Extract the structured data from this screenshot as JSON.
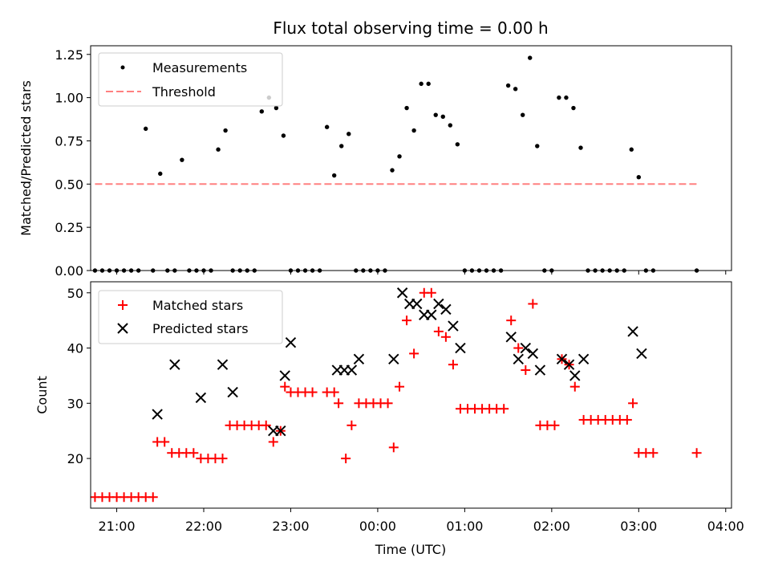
{
  "chart_data": [
    {
      "type": "scatter",
      "title": "Flux total observing time = 0.00 h",
      "xlabel": "",
      "ylabel": "Matched/Predicted stars",
      "ylim": [
        0,
        1.3
      ],
      "yticks": [
        "0.00",
        "0.25",
        "0.50",
        "0.75",
        "1.00",
        "1.25"
      ],
      "ytick_values": [
        0,
        0.25,
        0.5,
        0.75,
        1.0,
        1.25
      ],
      "xlim": [
        "20:42",
        "04:04"
      ],
      "xtick_values": [
        "21:00",
        "22:00",
        "23:00",
        "00:00",
        "01:00",
        "02:00",
        "03:00",
        "04:00"
      ],
      "legend_position": "upper-left",
      "grid": false,
      "series": [
        {
          "name": "Measurements",
          "marker": "dot",
          "color": "#000000",
          "points": [
            [
              "20:45",
              0
            ],
            [
              "20:50",
              0
            ],
            [
              "20:55",
              0
            ],
            [
              "21:00",
              0
            ],
            [
              "21:05",
              0
            ],
            [
              "21:10",
              0
            ],
            [
              "21:15",
              0
            ],
            [
              "21:20",
              0.82
            ],
            [
              "21:25",
              0
            ],
            [
              "21:30",
              0.56
            ],
            [
              "21:35",
              0
            ],
            [
              "21:40",
              0
            ],
            [
              "21:45",
              0.64
            ],
            [
              "21:50",
              0
            ],
            [
              "21:55",
              0
            ],
            [
              "22:00",
              0
            ],
            [
              "22:05",
              0
            ],
            [
              "22:10",
              0.7
            ],
            [
              "22:15",
              0.81
            ],
            [
              "22:20",
              0
            ],
            [
              "22:25",
              0
            ],
            [
              "22:30",
              0
            ],
            [
              "22:35",
              0
            ],
            [
              "22:40",
              0.92
            ],
            [
              "22:45",
              1.0
            ],
            [
              "22:50",
              0.94
            ],
            [
              "22:55",
              0.78
            ],
            [
              "23:00",
              0
            ],
            [
              "23:05",
              0
            ],
            [
              "23:10",
              0
            ],
            [
              "23:15",
              0
            ],
            [
              "23:20",
              0
            ],
            [
              "23:25",
              0.83
            ],
            [
              "23:30",
              0.55
            ],
            [
              "23:35",
              0.72
            ],
            [
              "23:40",
              0.79
            ],
            [
              "23:45",
              0
            ],
            [
              "23:50",
              0
            ],
            [
              "23:55",
              0
            ],
            [
              "00:00",
              0
            ],
            [
              "00:05",
              0
            ],
            [
              "00:10",
              0.58
            ],
            [
              "00:15",
              0.66
            ],
            [
              "00:20",
              0.94
            ],
            [
              "00:25",
              0.81
            ],
            [
              "00:30",
              1.08
            ],
            [
              "00:35",
              1.08
            ],
            [
              "00:40",
              0.9
            ],
            [
              "00:45",
              0.89
            ],
            [
              "00:50",
              0.84
            ],
            [
              "00:55",
              0.73
            ],
            [
              "01:00",
              0
            ],
            [
              "01:05",
              0
            ],
            [
              "01:10",
              0
            ],
            [
              "01:15",
              0
            ],
            [
              "01:20",
              0
            ],
            [
              "01:25",
              0
            ],
            [
              "01:30",
              1.07
            ],
            [
              "01:35",
              1.05
            ],
            [
              "01:40",
              0.9
            ],
            [
              "01:45",
              1.23
            ],
            [
              "01:50",
              0.72
            ],
            [
              "01:55",
              0
            ],
            [
              "02:00",
              0
            ],
            [
              "02:05",
              1.0
            ],
            [
              "02:10",
              1.0
            ],
            [
              "02:15",
              0.94
            ],
            [
              "02:20",
              0.71
            ],
            [
              "02:25",
              0
            ],
            [
              "02:30",
              0
            ],
            [
              "02:35",
              0
            ],
            [
              "02:40",
              0
            ],
            [
              "02:45",
              0
            ],
            [
              "02:50",
              0
            ],
            [
              "02:55",
              0.7
            ],
            [
              "03:00",
              0.54
            ],
            [
              "03:05",
              0
            ],
            [
              "03:10",
              0
            ],
            [
              "03:40",
              0
            ]
          ]
        },
        {
          "name": "Threshold",
          "marker": "dashed-line",
          "color": "#ff8080",
          "points": [
            [
              "20:45",
              0.5
            ],
            [
              "03:40",
              0.5
            ]
          ]
        }
      ]
    },
    {
      "type": "scatter",
      "title": "",
      "xlabel": "Time (UTC)",
      "ylabel": "Count",
      "ylim": [
        11,
        52
      ],
      "yticks": [
        "20",
        "30",
        "40",
        "50"
      ],
      "ytick_values": [
        20,
        30,
        40,
        50
      ],
      "xlim": [
        "20:42",
        "04:04"
      ],
      "xtick_values": [
        "21:00",
        "22:00",
        "23:00",
        "00:00",
        "01:00",
        "02:00",
        "03:00",
        "04:00"
      ],
      "xticks": [
        "21:00",
        "22:00",
        "23:00",
        "00:00",
        "01:00",
        "02:00",
        "03:00",
        "04:00"
      ],
      "legend_position": "upper-left",
      "grid": false,
      "series": [
        {
          "name": "Matched stars",
          "marker": "plus",
          "color": "#ff0000",
          "points": [
            [
              "20:45",
              13
            ],
            [
              "20:50",
              13
            ],
            [
              "20:55",
              13
            ],
            [
              "21:00",
              13
            ],
            [
              "21:05",
              13
            ],
            [
              "21:10",
              13
            ],
            [
              "21:15",
              13
            ],
            [
              "21:20",
              13
            ],
            [
              "21:25",
              13
            ],
            [
              "21:28",
              23
            ],
            [
              "21:33",
              23
            ],
            [
              "21:38",
              21
            ],
            [
              "21:43",
              21
            ],
            [
              "21:48",
              21
            ],
            [
              "21:53",
              21
            ],
            [
              "21:58",
              20
            ],
            [
              "22:03",
              20
            ],
            [
              "22:08",
              20
            ],
            [
              "22:13",
              20
            ],
            [
              "22:18",
              26
            ],
            [
              "22:23",
              26
            ],
            [
              "22:28",
              26
            ],
            [
              "22:33",
              26
            ],
            [
              "22:38",
              26
            ],
            [
              "22:43",
              26
            ],
            [
              "22:48",
              23
            ],
            [
              "22:53",
              25
            ],
            [
              "22:56",
              33
            ],
            [
              "23:00",
              32
            ],
            [
              "23:05",
              32
            ],
            [
              "23:10",
              32
            ],
            [
              "23:15",
              32
            ],
            [
              "23:25",
              32
            ],
            [
              "23:30",
              32
            ],
            [
              "23:33",
              30
            ],
            [
              "23:38",
              20
            ],
            [
              "23:42",
              26
            ],
            [
              "23:47",
              30
            ],
            [
              "23:52",
              30
            ],
            [
              "23:57",
              30
            ],
            [
              "00:02",
              30
            ],
            [
              "00:07",
              30
            ],
            [
              "00:11",
              22
            ],
            [
              "00:15",
              33
            ],
            [
              "00:20",
              45
            ],
            [
              "00:25",
              39
            ],
            [
              "00:32",
              50
            ],
            [
              "00:37",
              50
            ],
            [
              "00:42",
              43
            ],
            [
              "00:47",
              42
            ],
            [
              "00:52",
              37
            ],
            [
              "00:57",
              29
            ],
            [
              "01:02",
              29
            ],
            [
              "01:07",
              29
            ],
            [
              "01:12",
              29
            ],
            [
              "01:17",
              29
            ],
            [
              "01:22",
              29
            ],
            [
              "01:27",
              29
            ],
            [
              "01:32",
              45
            ],
            [
              "01:37",
              40
            ],
            [
              "01:42",
              36
            ],
            [
              "01:47",
              48
            ],
            [
              "01:52",
              26
            ],
            [
              "01:57",
              26
            ],
            [
              "02:02",
              26
            ],
            [
              "02:07",
              38
            ],
            [
              "02:12",
              37
            ],
            [
              "02:16",
              33
            ],
            [
              "02:22",
              27
            ],
            [
              "02:27",
              27
            ],
            [
              "02:32",
              27
            ],
            [
              "02:37",
              27
            ],
            [
              "02:42",
              27
            ],
            [
              "02:47",
              27
            ],
            [
              "02:52",
              27
            ],
            [
              "02:56",
              30
            ],
            [
              "03:00",
              21
            ],
            [
              "03:05",
              21
            ],
            [
              "03:10",
              21
            ],
            [
              "03:40",
              21
            ]
          ]
        },
        {
          "name": "Predicted stars",
          "marker": "x",
          "color": "#000000",
          "points": [
            [
              "21:28",
              28
            ],
            [
              "21:40",
              37
            ],
            [
              "21:58",
              31
            ],
            [
              "22:13",
              37
            ],
            [
              "22:20",
              32
            ],
            [
              "22:48",
              25
            ],
            [
              "22:53",
              25
            ],
            [
              "22:56",
              35
            ],
            [
              "23:00",
              41
            ],
            [
              "23:32",
              36
            ],
            [
              "23:37",
              36
            ],
            [
              "23:42",
              36
            ],
            [
              "23:47",
              38
            ],
            [
              "00:11",
              38
            ],
            [
              "00:17",
              50
            ],
            [
              "00:22",
              48
            ],
            [
              "00:27",
              48
            ],
            [
              "00:32",
              46
            ],
            [
              "00:37",
              46
            ],
            [
              "00:42",
              48
            ],
            [
              "00:47",
              47
            ],
            [
              "00:52",
              44
            ],
            [
              "00:57",
              40
            ],
            [
              "01:32",
              42
            ],
            [
              "01:37",
              38
            ],
            [
              "01:42",
              40
            ],
            [
              "01:47",
              39
            ],
            [
              "01:52",
              36
            ],
            [
              "02:07",
              38
            ],
            [
              "02:12",
              37
            ],
            [
              "02:16",
              35
            ],
            [
              "02:22",
              38
            ],
            [
              "02:56",
              43
            ],
            [
              "03:02",
              39
            ]
          ]
        }
      ]
    }
  ]
}
